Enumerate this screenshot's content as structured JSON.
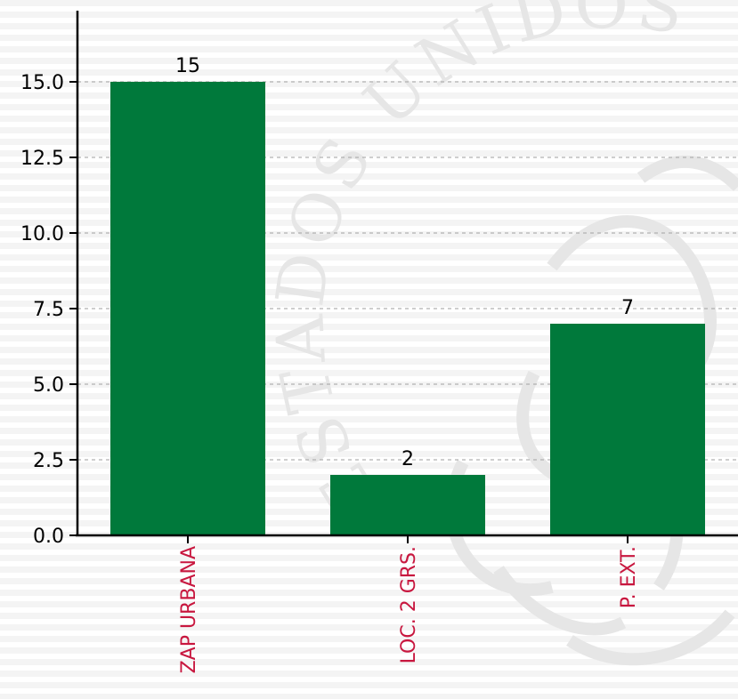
{
  "colors": {
    "bar": "#00793b",
    "category_label": "#c8173f",
    "axis": "#000000",
    "grid": "#b0b0b0",
    "watermark": "#e6e6e6"
  },
  "watermark": {
    "text": "ESTADOS UNIDOS MEXICANOS"
  },
  "chart_data": {
    "type": "bar",
    "categories": [
      "ZAP URBANA",
      "LOC. 2 GRS.",
      "P. EXT."
    ],
    "values": [
      15,
      2,
      7
    ],
    "data_labels": [
      "15",
      "2",
      "7"
    ],
    "yticks": [
      "0.0",
      "2.5",
      "5.0",
      "7.5",
      "10.0",
      "12.5",
      "15.0"
    ],
    "ylim": [
      0,
      17.3
    ],
    "grid": "horizontal-dashed",
    "title": "",
    "xlabel": "",
    "ylabel": ""
  }
}
